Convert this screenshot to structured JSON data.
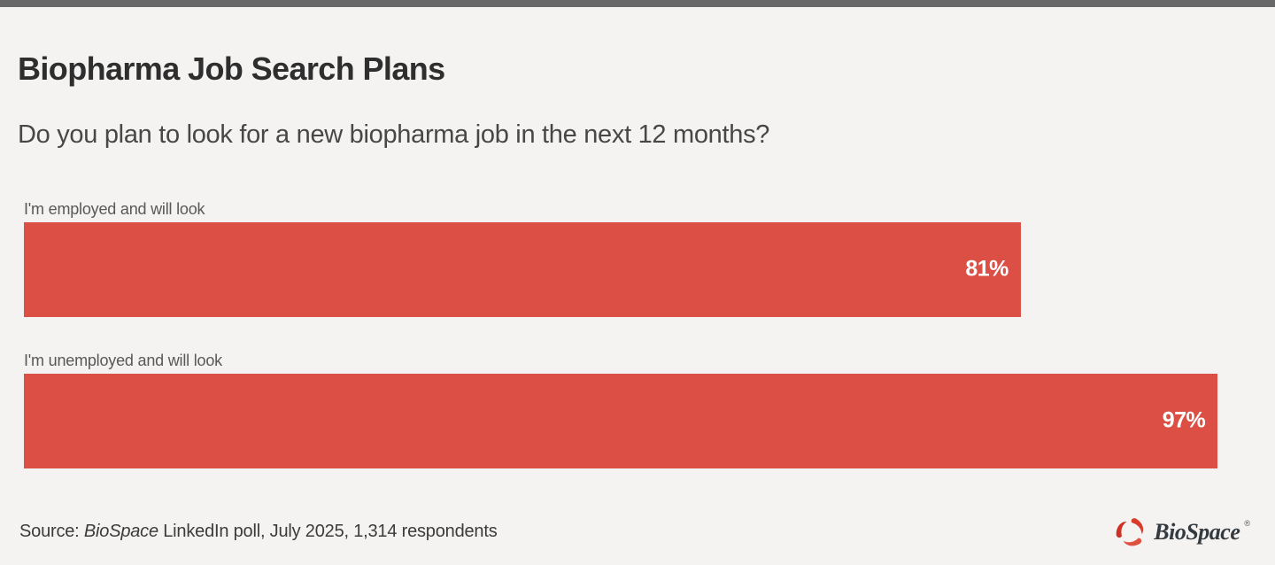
{
  "page": {
    "background": "#f4f3f1",
    "topbar_color": "#686868"
  },
  "header": {
    "title": "Biopharma Job Search Plans",
    "subtitle": "Do you plan to look for a new biopharma job in the next 12 months?"
  },
  "chart_data": {
    "type": "bar",
    "orientation": "horizontal",
    "title": "Biopharma Job Search Plans",
    "subtitle": "Do you plan to look for a new biopharma job in the next 12 months?",
    "categories": [
      "I'm employed and will look",
      "I'm unemployed and will look"
    ],
    "values": [
      81,
      97
    ],
    "value_labels": [
      "81%",
      "97%"
    ],
    "value_format": "percent",
    "xlim": [
      0,
      100
    ],
    "grid": false,
    "legend": "none",
    "bar_color": "#dc4f45",
    "value_label_color": "#ffffff",
    "source": "Source: BioSpace LinkedIn poll, July 2025, 1,314 respondents"
  },
  "footer": {
    "source_prefix": "Source: ",
    "source_name": "BioSpace",
    "source_rest": " LinkedIn poll, July 2025, 1,314 respondents",
    "logo_text": "BioSpace",
    "logo_reg": "®",
    "logo_mark_color": "#d93a2b"
  }
}
